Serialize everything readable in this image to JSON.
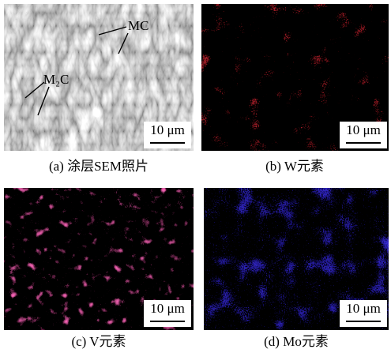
{
  "panels": [
    {
      "caption": "(a)  涂层SEM照片",
      "scale_bar": "10 μm",
      "annotations": [
        "MC",
        "M₂C"
      ]
    },
    {
      "caption": "(b)  W元素",
      "scale_bar": "10 μm"
    },
    {
      "caption": "(c)  V元素",
      "scale_bar": "10 μm"
    },
    {
      "caption": "(d)  Mo元素",
      "scale_bar": "10 μm"
    }
  ]
}
